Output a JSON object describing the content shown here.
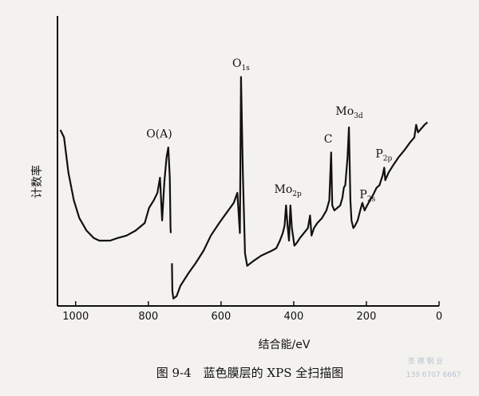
{
  "chart_data": {
    "type": "line",
    "x_axis": {
      "label": "结合能/eV",
      "range": [
        1050,
        0
      ],
      "ticks": [
        1000,
        800,
        600,
        400,
        200,
        0
      ]
    },
    "y_axis": {
      "label": "计数率",
      "ticks": []
    },
    "series": [
      {
        "points": [
          [
            1042,
            0.69
          ],
          [
            1032,
            0.66
          ],
          [
            1020,
            0.52
          ],
          [
            1005,
            0.41
          ],
          [
            990,
            0.34
          ],
          [
            970,
            0.29
          ],
          [
            950,
            0.26
          ],
          [
            935,
            0.25
          ],
          [
            925,
            0.25
          ],
          [
            905,
            0.25
          ],
          [
            885,
            0.26
          ],
          [
            860,
            0.27
          ],
          [
            835,
            0.29
          ],
          [
            810,
            0.32
          ],
          [
            798,
            0.38
          ],
          [
            785,
            0.41
          ],
          [
            775,
            0.44
          ],
          [
            768,
            0.5
          ],
          [
            762,
            0.33
          ],
          [
            756,
            0.48
          ],
          [
            750,
            0.58
          ],
          [
            745,
            0.62
          ],
          [
            741,
            0.5
          ],
          [
            739,
            0.3
          ],
          [
            738,
            0.28
          ]
        ]
      },
      {
        "points": [
          [
            735,
            0.16
          ],
          [
            734,
            0.05
          ],
          [
            731,
            0.02
          ],
          [
            722,
            0.03
          ],
          [
            712,
            0.07
          ],
          [
            690,
            0.12
          ],
          [
            670,
            0.16
          ],
          [
            648,
            0.21
          ],
          [
            628,
            0.27
          ],
          [
            605,
            0.32
          ],
          [
            585,
            0.36
          ],
          [
            565,
            0.4
          ],
          [
            555,
            0.44
          ],
          [
            548,
            0.28
          ],
          [
            545,
            0.9
          ],
          [
            540,
            0.52
          ],
          [
            534,
            0.2
          ],
          [
            528,
            0.15
          ],
          [
            510,
            0.17
          ],
          [
            490,
            0.19
          ],
          [
            475,
            0.2
          ],
          [
            460,
            0.21
          ],
          [
            448,
            0.22
          ],
          [
            438,
            0.25
          ],
          [
            430,
            0.28
          ],
          [
            425,
            0.31
          ],
          [
            421,
            0.39
          ],
          [
            417,
            0.31
          ],
          [
            413,
            0.25
          ],
          [
            409,
            0.39
          ],
          [
            405,
            0.3
          ],
          [
            398,
            0.23
          ],
          [
            392,
            0.24
          ],
          [
            383,
            0.26
          ],
          [
            372,
            0.28
          ],
          [
            361,
            0.3
          ],
          [
            355,
            0.35
          ],
          [
            351,
            0.27
          ],
          [
            344,
            0.3
          ],
          [
            335,
            0.32
          ],
          [
            322,
            0.34
          ],
          [
            310,
            0.37
          ],
          [
            302,
            0.41
          ],
          [
            297,
            0.6
          ],
          [
            294,
            0.39
          ],
          [
            288,
            0.37
          ],
          [
            280,
            0.38
          ],
          [
            272,
            0.39
          ],
          [
            266,
            0.42
          ],
          [
            262,
            0.46
          ],
          [
            258,
            0.47
          ],
          [
            252,
            0.58
          ],
          [
            248,
            0.7
          ],
          [
            244,
            0.41
          ],
          [
            241,
            0.33
          ],
          [
            236,
            0.3
          ],
          [
            231,
            0.31
          ],
          [
            224,
            0.33
          ],
          [
            217,
            0.37
          ],
          [
            211,
            0.4
          ],
          [
            205,
            0.37
          ],
          [
            198,
            0.39
          ],
          [
            190,
            0.41
          ],
          [
            182,
            0.43
          ],
          [
            172,
            0.46
          ],
          [
            164,
            0.47
          ],
          [
            155,
            0.51
          ],
          [
            151,
            0.54
          ],
          [
            148,
            0.49
          ],
          [
            139,
            0.52
          ],
          [
            126,
            0.55
          ],
          [
            112,
            0.58
          ],
          [
            95,
            0.61
          ],
          [
            80,
            0.64
          ],
          [
            68,
            0.66
          ],
          [
            63,
            0.71
          ],
          [
            58,
            0.68
          ],
          [
            52,
            0.69
          ],
          [
            40,
            0.71
          ],
          [
            32,
            0.72
          ]
        ]
      }
    ],
    "annotations": [
      {
        "text": "O(A)",
        "main": "O(A)",
        "sub": "",
        "x": 770,
        "y": 0.66
      },
      {
        "text": "O1s",
        "main": "O",
        "sub": "1s",
        "x": 545,
        "y": 0.94
      },
      {
        "text": "Mo2p",
        "main": "Mo",
        "sub": "2p",
        "x": 416,
        "y": 0.44
      },
      {
        "text": "C",
        "main": "C",
        "sub": "",
        "x": 305,
        "y": 0.64
      },
      {
        "text": "Mo3d",
        "main": "Mo",
        "sub": "3d",
        "x": 247,
        "y": 0.75
      },
      {
        "text": "P2s",
        "main": "P",
        "sub": "2s",
        "x": 197,
        "y": 0.42
      },
      {
        "text": "P2p",
        "main": "P",
        "sub": "2p",
        "x": 152,
        "y": 0.58
      }
    ],
    "grid": false,
    "legend": "none"
  },
  "caption": "图 9-4　蓝色膜层的 XPS 全扫描图",
  "watermark": [
    "圣 德 钢 业",
    "139 6707 6667"
  ]
}
